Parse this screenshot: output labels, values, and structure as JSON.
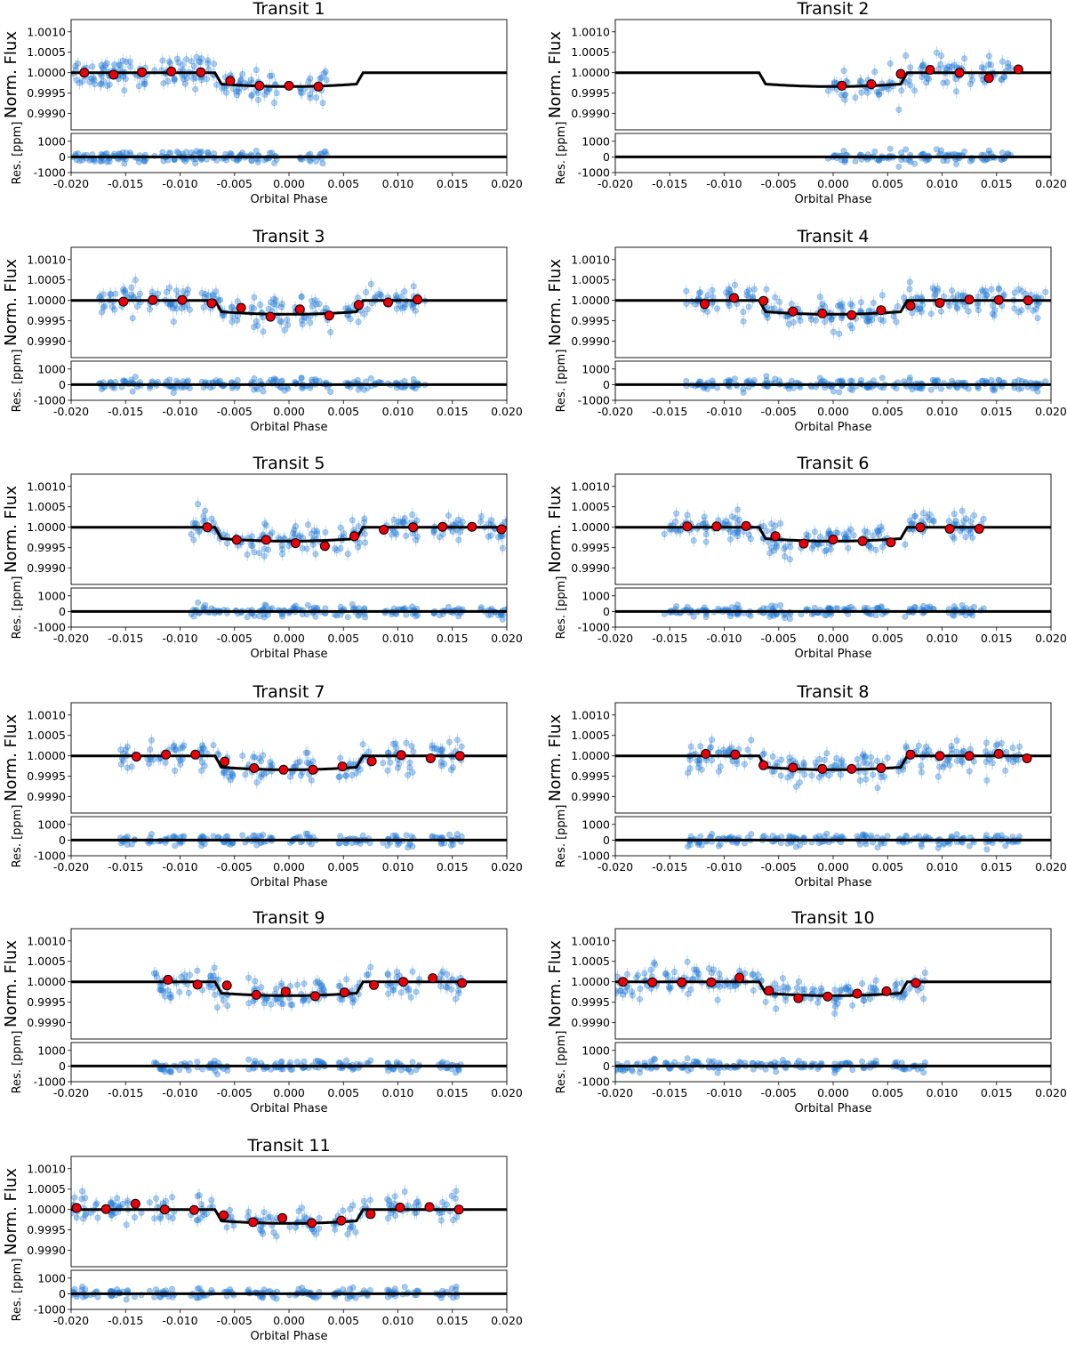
{
  "figure": {
    "width": 1200,
    "height": 1521,
    "colors": {
      "data_points": "#1f77d4",
      "binned_points": "#e8000b",
      "binned_edge": "#000000",
      "model_line": "#000000"
    }
  },
  "chart_data": {
    "type": "scatter",
    "description_labels": {
      "ylabel_flux": "Norm. Flux",
      "ylabel_res": "Res. [ppm]",
      "xlabel": "Orbital Phase"
    },
    "xlim": [
      -0.02,
      0.02
    ],
    "xticks": [
      "-0.020",
      "-0.015",
      "-0.010",
      "-0.005",
      "0.000",
      "0.005",
      "0.010",
      "0.015",
      "0.020"
    ],
    "xtick_values": [
      -0.02,
      -0.015,
      -0.01,
      -0.005,
      0.0,
      0.005,
      0.01,
      0.015,
      0.02
    ],
    "flux_ylim": [
      0.9986,
      1.0013
    ],
    "flux_yticks": [
      "1.0010",
      "1.0005",
      "1.0000",
      "0.9995",
      "0.9990"
    ],
    "flux_ytick_values": [
      1.001,
      1.0005,
      1.0,
      0.9995,
      0.999
    ],
    "res_ylim": [
      -1000,
      1500
    ],
    "res_yticks": [
      "1000",
      "0",
      "-1000"
    ],
    "res_ytick_values": [
      1000,
      0,
      -1000
    ],
    "model": {
      "baseline": 1.0,
      "depth": 0.00034,
      "ingress_start": -0.0068,
      "ingress_end": -0.0062,
      "egress_start": 0.0062,
      "egress_end": 0.0068
    },
    "transits": [
      {
        "title": "Transit 1",
        "data_ranges": [
          [
            -0.0205,
            -0.0165
          ],
          [
            -0.0165,
            -0.0125
          ],
          [
            -0.0125,
            -0.0085
          ],
          [
            -0.0085,
            -0.0045
          ],
          [
            -0.0045,
            -0.001
          ],
          [
            0.001,
            0.0035
          ]
        ],
        "binned": [
          [
            -0.0188,
            1.0
          ],
          [
            -0.0161,
            0.99995
          ],
          [
            -0.0135,
            1.00001
          ],
          [
            -0.0108,
            1.00003
          ],
          [
            -0.0081,
            1.00001
          ],
          [
            -0.0054,
            0.9998
          ],
          [
            -0.0027,
            0.99968
          ],
          [
            0.0,
            0.99968
          ],
          [
            0.0027,
            0.99966
          ]
        ]
      },
      {
        "title": "Transit 2",
        "data_ranges": [
          [
            -0.0005,
            0.0015
          ],
          [
            0.002,
            0.0055
          ],
          [
            0.006,
            0.009
          ],
          [
            0.0095,
            0.013
          ],
          [
            0.0135,
            0.0165
          ]
        ],
        "binned": [
          [
            0.0008,
            0.99968
          ],
          [
            0.0035,
            0.99972
          ],
          [
            0.0062,
            0.99997
          ],
          [
            0.0089,
            1.00007
          ],
          [
            0.0116,
            1.0
          ],
          [
            0.0143,
            0.99987
          ],
          [
            0.017,
            1.00008
          ]
        ]
      },
      {
        "title": "Transit 3",
        "data_ranges": [
          [
            -0.0175,
            -0.0135
          ],
          [
            -0.013,
            -0.009
          ],
          [
            -0.008,
            -0.0045
          ],
          [
            -0.0035,
            0.0
          ],
          [
            0.0005,
            0.004
          ],
          [
            0.005,
            0.0085
          ],
          [
            0.009,
            0.0125
          ]
        ],
        "binned": [
          [
            -0.0152,
            0.99997
          ],
          [
            -0.0125,
            1.00001
          ],
          [
            -0.0098,
            1.00001
          ],
          [
            -0.0071,
            0.99993
          ],
          [
            -0.0044,
            0.99982
          ],
          [
            -0.0017,
            0.9996
          ],
          [
            0.001,
            0.99978
          ],
          [
            0.0037,
            0.99963
          ],
          [
            0.0064,
            0.99989
          ],
          [
            0.0091,
            0.99995
          ],
          [
            0.0118,
            1.00002
          ]
        ]
      },
      {
        "title": "Transit 4",
        "data_ranges": [
          [
            -0.0135,
            -0.0105
          ],
          [
            -0.01,
            -0.007
          ],
          [
            -0.0065,
            -0.003
          ],
          [
            -0.0025,
            0.001
          ],
          [
            0.0015,
            0.005
          ],
          [
            0.0055,
            0.0085
          ],
          [
            0.009,
            0.0125
          ],
          [
            0.013,
            0.016
          ],
          [
            0.0165,
            0.0195
          ]
        ],
        "binned": [
          [
            -0.0118,
            0.99991
          ],
          [
            -0.0091,
            1.00006
          ],
          [
            -0.0064,
            0.99999
          ],
          [
            -0.0037,
            0.99973
          ],
          [
            -0.001,
            0.99968
          ],
          [
            0.0017,
            0.99964
          ],
          [
            0.0044,
            0.99976
          ],
          [
            0.0071,
            0.99987
          ],
          [
            0.0098,
            0.99994
          ],
          [
            0.0125,
            1.00002
          ],
          [
            0.0152,
            1.00001
          ],
          [
            0.0179,
            1.0
          ]
        ]
      },
      {
        "title": "Transit 5",
        "data_ranges": [
          [
            -0.009,
            -0.0055
          ],
          [
            -0.005,
            -0.0015
          ],
          [
            -0.001,
            0.0035
          ],
          [
            0.004,
            0.007
          ],
          [
            0.0085,
            0.012
          ],
          [
            0.013,
            0.016
          ],
          [
            0.0175,
            0.0205
          ]
        ],
        "binned": [
          [
            -0.0075,
            1.0
          ],
          [
            -0.0048,
            0.99969
          ],
          [
            -0.0021,
            0.99969
          ],
          [
            0.0006,
            0.99961
          ],
          [
            0.0033,
            0.99954
          ],
          [
            0.006,
            0.99978
          ],
          [
            0.0087,
            0.99994
          ],
          [
            0.0114,
            1.0
          ],
          [
            0.0141,
            1.00001
          ],
          [
            0.0168,
            1.00001
          ],
          [
            0.0195,
            0.99995
          ]
        ]
      },
      {
        "title": "Transit 6",
        "data_ranges": [
          [
            -0.0155,
            -0.0115
          ],
          [
            -0.011,
            -0.0075
          ],
          [
            -0.007,
            -0.0035
          ],
          [
            -0.003,
            0.0005
          ],
          [
            0.001,
            0.005
          ],
          [
            0.0065,
            0.0095
          ],
          [
            0.0105,
            0.014
          ]
        ],
        "binned": [
          [
            -0.0134,
            1.00002
          ],
          [
            -0.0107,
            1.00002
          ],
          [
            -0.008,
            1.00003
          ],
          [
            -0.0053,
            0.99978
          ],
          [
            -0.0027,
            0.9996
          ],
          [
            0.0,
            0.9997
          ],
          [
            0.0027,
            0.99966
          ],
          [
            0.0053,
            0.99963
          ],
          [
            0.008,
            1.0
          ],
          [
            0.0107,
            0.99996
          ],
          [
            0.0134,
            0.99996
          ]
        ]
      },
      {
        "title": "Transit 7",
        "data_ranges": [
          [
            -0.0155,
            -0.014
          ],
          [
            -0.013,
            -0.0095
          ],
          [
            -0.0085,
            -0.005
          ],
          [
            -0.0045,
            -0.0015
          ],
          [
            0.0,
            0.0025
          ],
          [
            0.0045,
            0.0075
          ],
          [
            0.0085,
            0.0115
          ],
          [
            0.013,
            0.016
          ]
        ],
        "binned": [
          [
            -0.014,
            0.99998
          ],
          [
            -0.0113,
            1.00003
          ],
          [
            -0.0086,
            1.00003
          ],
          [
            -0.0059,
            0.99986
          ],
          [
            -0.0032,
            0.9997
          ],
          [
            -0.0005,
            0.99966
          ],
          [
            0.0022,
            0.99966
          ],
          [
            0.0049,
            0.99974
          ],
          [
            0.0076,
            0.99987
          ],
          [
            0.0103,
            1.00002
          ],
          [
            0.013,
            0.99994
          ],
          [
            0.0157,
            1.0
          ]
        ]
      },
      {
        "title": "Transit 8",
        "data_ranges": [
          [
            -0.0135,
            -0.0075
          ],
          [
            -0.0065,
            -0.0025
          ],
          [
            -0.002,
            0.001
          ],
          [
            0.002,
            0.005
          ],
          [
            0.006,
            0.009
          ],
          [
            0.0095,
            0.013
          ],
          [
            0.014,
            0.0175
          ]
        ],
        "binned": [
          [
            -0.0117,
            1.00005
          ],
          [
            -0.009,
            1.00003
          ],
          [
            -0.0064,
            0.99977
          ],
          [
            -0.0037,
            0.99971
          ],
          [
            -0.001,
            0.99968
          ],
          [
            0.0017,
            0.99968
          ],
          [
            0.0044,
            0.9997
          ],
          [
            0.0071,
            1.00003
          ],
          [
            0.0098,
            1.0
          ],
          [
            0.0125,
            1.0
          ],
          [
            0.0152,
            1.00005
          ],
          [
            0.0178,
            0.99994
          ]
        ]
      },
      {
        "title": "Transit 9",
        "data_ranges": [
          [
            -0.0125,
            -0.009
          ],
          [
            -0.0085,
            -0.0055
          ],
          [
            -0.004,
            -0.0005
          ],
          [
            0.0,
            0.0035
          ],
          [
            0.0045,
            0.0075
          ],
          [
            0.009,
            0.012
          ],
          [
            0.0135,
            0.016
          ]
        ],
        "binned": [
          [
            -0.0111,
            1.00005
          ],
          [
            -0.0084,
            0.99993
          ],
          [
            -0.0057,
            0.99991
          ],
          [
            -0.003,
            0.99968
          ],
          [
            -0.0003,
            0.99976
          ],
          [
            0.0024,
            0.99965
          ],
          [
            0.0051,
            0.99974
          ],
          [
            0.0078,
            0.99992
          ],
          [
            0.0105,
            1.0
          ],
          [
            0.0132,
            1.00009
          ],
          [
            0.0159,
            0.99997
          ]
        ]
      },
      {
        "title": "Transit 10",
        "data_ranges": [
          [
            -0.02,
            -0.016
          ],
          [
            -0.0155,
            -0.012
          ],
          [
            -0.0115,
            -0.008
          ],
          [
            -0.0075,
            -0.004
          ],
          [
            -0.0035,
            -0.001
          ],
          [
            0.0,
            0.004
          ],
          [
            0.0055,
            0.0085
          ]
        ],
        "binned": [
          [
            -0.0193,
            1.0
          ],
          [
            -0.0166,
            0.99999
          ],
          [
            -0.0139,
            0.99999
          ],
          [
            -0.0112,
            0.99999
          ],
          [
            -0.0086,
            1.0001
          ],
          [
            -0.0059,
            0.99978
          ],
          [
            -0.0032,
            0.9996
          ],
          [
            -0.0005,
            0.99964
          ],
          [
            0.0022,
            0.99971
          ],
          [
            0.0049,
            0.99977
          ],
          [
            0.0076,
            0.99997
          ]
        ]
      },
      {
        "title": "Transit 11",
        "data_ranges": [
          [
            -0.0205,
            -0.0175
          ],
          [
            -0.0165,
            -0.0135
          ],
          [
            -0.013,
            -0.0105
          ],
          [
            -0.009,
            -0.007
          ],
          [
            -0.006,
            -0.005
          ],
          [
            -0.004,
            -0.001
          ],
          [
            0.0,
            0.003
          ],
          [
            0.004,
            0.0075
          ],
          [
            0.009,
            0.012
          ],
          [
            0.0135,
            0.0155
          ]
        ],
        "binned": [
          [
            -0.0195,
            1.00004
          ],
          [
            -0.0168,
            1.00001
          ],
          [
            -0.0141,
            1.00014
          ],
          [
            -0.0114,
            1.0
          ],
          [
            -0.0087,
            0.99999
          ],
          [
            -0.006,
            0.99986
          ],
          [
            -0.0033,
            0.99969
          ],
          [
            -0.0006,
            0.99979
          ],
          [
            0.0021,
            0.99967
          ],
          [
            0.0048,
            0.99973
          ],
          [
            0.0075,
            0.99989
          ],
          [
            0.0102,
            1.00005
          ],
          [
            0.0129,
            1.00006
          ],
          [
            0.0156,
            1.0
          ]
        ]
      }
    ]
  }
}
